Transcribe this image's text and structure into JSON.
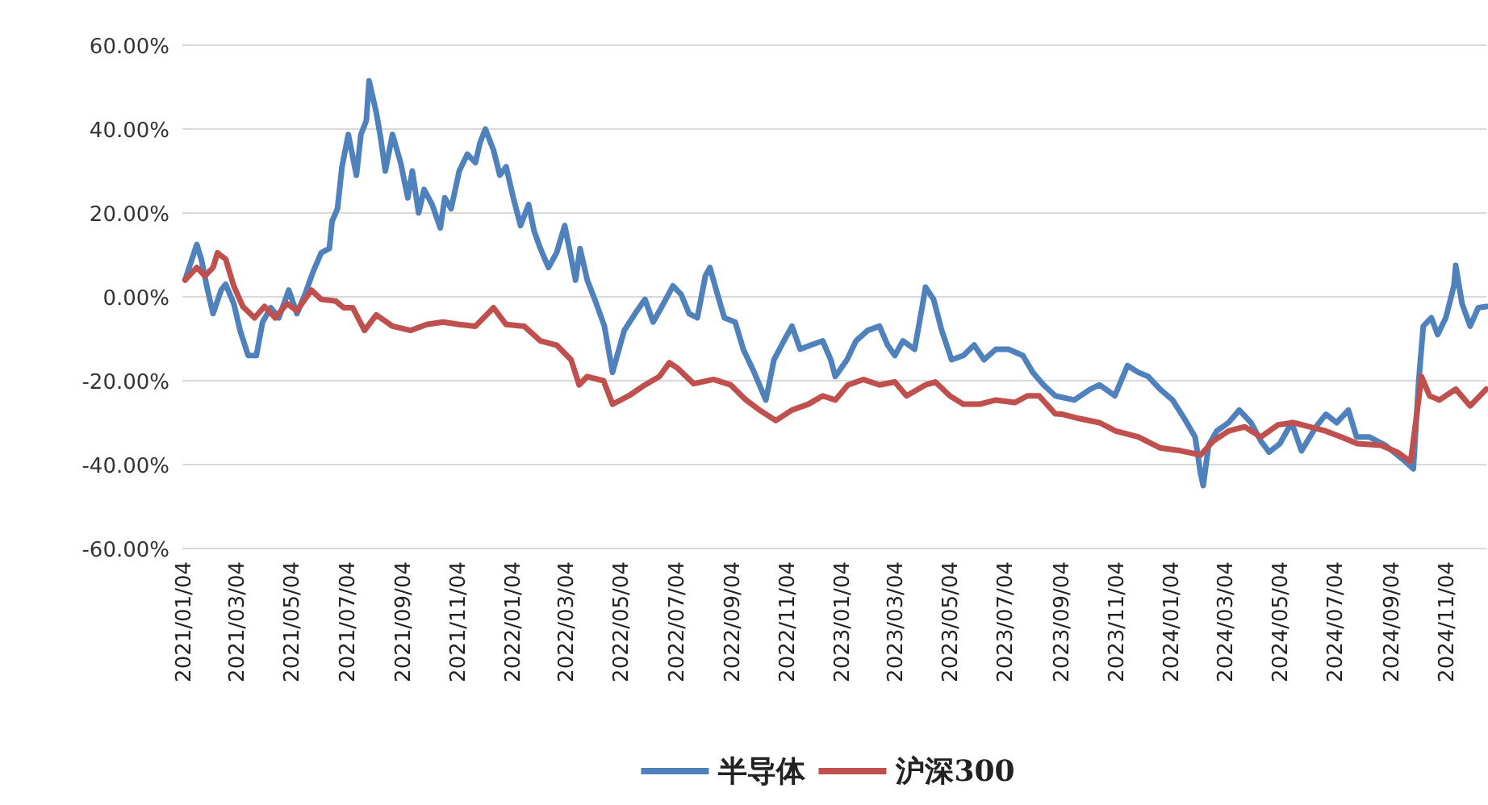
{
  "chart_data": {
    "type": "line",
    "xlim": [
      "2021-01-01",
      "2024-12-17"
    ],
    "xticks": [
      {
        "value": "2021-01-04",
        "label": "2021/01/04"
      },
      {
        "value": "2021-03-04",
        "label": "2021/03/04"
      },
      {
        "value": "2021-05-04",
        "label": "2021/05/04"
      },
      {
        "value": "2021-07-04",
        "label": "2021/07/04"
      },
      {
        "value": "2021-09-04",
        "label": "2021/09/04"
      },
      {
        "value": "2021-11-04",
        "label": "2021/11/04"
      },
      {
        "value": "2022-01-04",
        "label": "2022/01/04"
      },
      {
        "value": "2022-03-04",
        "label": "2022/03/04"
      },
      {
        "value": "2022-05-04",
        "label": "2022/05/04"
      },
      {
        "value": "2022-07-04",
        "label": "2022/07/04"
      },
      {
        "value": "2022-09-04",
        "label": "2022/09/04"
      },
      {
        "value": "2022-11-04",
        "label": "2022/11/04"
      },
      {
        "value": "2023-01-04",
        "label": "2023/01/04"
      },
      {
        "value": "2023-03-04",
        "label": "2023/03/04"
      },
      {
        "value": "2023-05-04",
        "label": "2023/05/04"
      },
      {
        "value": "2023-07-04",
        "label": "2023/07/04"
      },
      {
        "value": "2023-09-04",
        "label": "2023/09/04"
      },
      {
        "value": "2023-11-04",
        "label": "2023/11/04"
      },
      {
        "value": "2024-01-04",
        "label": "2024/01/04"
      },
      {
        "value": "2024-03-04",
        "label": "2024/03/04"
      },
      {
        "value": "2024-05-04",
        "label": "2024/05/04"
      },
      {
        "value": "2024-07-04",
        "label": "2024/07/04"
      },
      {
        "value": "2024-09-04",
        "label": "2024/09/04"
      },
      {
        "value": "2024-11-04",
        "label": "2024/11/04"
      }
    ],
    "ylim": [
      -60,
      60
    ],
    "yticks": [
      {
        "value": 60,
        "label": "60.00%"
      },
      {
        "value": 40,
        "label": "40.00%"
      },
      {
        "value": 20,
        "label": "20.00%"
      },
      {
        "value": 0,
        "label": "0.00%"
      },
      {
        "value": -20,
        "label": "-20.00%"
      },
      {
        "value": -40,
        "label": "-40.00%"
      },
      {
        "value": -60,
        "label": "-60.00%"
      }
    ],
    "grid": "y",
    "legend": "bottom",
    "series": [
      {
        "name": "半导体",
        "color": "#4f81bd",
        "x": [
          "2021-01-04",
          "2021-01-17",
          "2021-01-22",
          "2021-01-29",
          "2021-02-04",
          "2021-02-13",
          "2021-02-18",
          "2021-02-27",
          "2021-03-06",
          "2021-03-15",
          "2021-03-24",
          "2021-03-31",
          "2021-04-09",
          "2021-04-18",
          "2021-04-29",
          "2021-05-08",
          "2021-05-17",
          "2021-05-26",
          "2021-06-04",
          "2021-06-13",
          "2021-06-16",
          "2021-06-22",
          "2021-06-27",
          "2021-07-04",
          "2021-07-13",
          "2021-07-18",
          "2021-07-24",
          "2021-07-27",
          "2021-08-04",
          "2021-08-09",
          "2021-08-14",
          "2021-08-22",
          "2021-08-31",
          "2021-09-08",
          "2021-09-13",
          "2021-09-20",
          "2021-09-26",
          "2021-10-05",
          "2021-10-14",
          "2021-10-19",
          "2021-10-26",
          "2021-11-04",
          "2021-11-13",
          "2021-11-22",
          "2021-11-27",
          "2021-12-03",
          "2021-12-12",
          "2021-12-19",
          "2021-12-26",
          "2022-01-03",
          "2022-01-11",
          "2022-01-20",
          "2022-01-26",
          "2022-02-02",
          "2022-02-11",
          "2022-02-20",
          "2022-03-01",
          "2022-03-04",
          "2022-03-13",
          "2022-03-18",
          "2022-03-26",
          "2022-04-05",
          "2022-04-14",
          "2022-04-23",
          "2022-05-06",
          "2022-05-18",
          "2022-05-29",
          "2022-06-07",
          "2022-06-16",
          "2022-06-29",
          "2022-07-08",
          "2022-07-17",
          "2022-07-26",
          "2022-08-04",
          "2022-08-09",
          "2022-08-16",
          "2022-08-25",
          "2022-09-06",
          "2022-09-15",
          "2022-09-27",
          "2022-10-10",
          "2022-10-19",
          "2022-10-30",
          "2022-11-08",
          "2022-11-17",
          "2022-11-29",
          "2022-12-12",
          "2022-12-21",
          "2022-12-26",
          "2023-01-08",
          "2023-01-18",
          "2023-01-31",
          "2023-02-13",
          "2023-02-22",
          "2023-03-02",
          "2023-03-11",
          "2023-03-24",
          "2023-04-02",
          "2023-04-05",
          "2023-04-14",
          "2023-04-23",
          "2023-05-04",
          "2023-05-17",
          "2023-05-29",
          "2023-06-09",
          "2023-06-22",
          "2023-07-06",
          "2023-07-22",
          "2023-08-02",
          "2023-08-14",
          "2023-08-27",
          "2023-09-17",
          "2023-10-05",
          "2023-10-15",
          "2023-11-01",
          "2023-11-15",
          "2023-11-27",
          "2023-12-08",
          "2023-12-21",
          "2024-01-04",
          "2024-01-17",
          "2024-01-29",
          "2024-02-04",
          "2024-02-07",
          "2024-02-13",
          "2024-02-22",
          "2024-03-06",
          "2024-03-18",
          "2024-03-31",
          "2024-04-11",
          "2024-04-20",
          "2024-05-02",
          "2024-05-15",
          "2024-05-26",
          "2024-06-11",
          "2024-06-22",
          "2024-07-04",
          "2024-07-17",
          "2024-07-26",
          "2024-08-09",
          "2024-08-27",
          "2024-09-15",
          "2024-09-27",
          "2024-10-03",
          "2024-10-08",
          "2024-10-17",
          "2024-10-24",
          "2024-11-02",
          "2024-11-11",
          "2024-11-13",
          "2024-11-20",
          "2024-11-29",
          "2024-12-08",
          "2024-12-17"
        ],
        "values": [
          4,
          12.5,
          9,
          1.6,
          -4,
          1.6,
          3,
          -1.6,
          -8,
          -14,
          -14,
          -6,
          -2.6,
          -5,
          1.6,
          -4,
          0.6,
          6,
          10.5,
          11.5,
          18,
          21,
          31,
          38.7,
          29,
          38.7,
          42,
          51.5,
          44,
          37.7,
          30,
          38.7,
          32,
          23.6,
          30,
          20,
          25.6,
          22,
          16.4,
          23.6,
          21,
          30,
          34,
          32,
          36.7,
          40,
          35,
          29,
          31,
          23.6,
          17,
          22,
          15.7,
          11.5,
          7,
          10.5,
          17,
          13.8,
          4,
          11.5,
          4,
          -1.6,
          -7,
          -18,
          -8,
          -4,
          -0.6,
          -6,
          -2.6,
          2.6,
          0.6,
          -4,
          -5,
          5,
          7,
          1.6,
          -5,
          -6,
          -12.5,
          -18,
          -24.6,
          -15,
          -10.5,
          -7,
          -12.5,
          -11.5,
          -10.5,
          -15,
          -19,
          -15,
          -10.5,
          -8,
          -7,
          -11.5,
          -14,
          -10.5,
          -12.5,
          -1.6,
          2.3,
          -0.6,
          -8,
          -15,
          -14,
          -11.5,
          -15,
          -12.5,
          -12.5,
          -14,
          -18,
          -21,
          -23.6,
          -24.6,
          -22,
          -21,
          -23.6,
          -16.4,
          -18,
          -19,
          -22,
          -24.6,
          -29,
          -33.4,
          -42,
          -45,
          -35.4,
          -32,
          -30,
          -27,
          -30,
          -34.4,
          -37,
          -35,
          -30,
          -36.7,
          -31,
          -28,
          -30,
          -27,
          -33.4,
          -33.4,
          -35.4,
          -38.7,
          -41,
          -20,
          -7,
          -5,
          -9,
          -5,
          2.6,
          7.5,
          -1.6,
          -7,
          -2.6,
          -2.3
        ]
      },
      {
        "name": "沪深300",
        "color": "#c0504d",
        "x": [
          "2021-01-04",
          "2021-01-17",
          "2021-01-26",
          "2021-02-04",
          "2021-02-09",
          "2021-02-18",
          "2021-02-27",
          "2021-03-09",
          "2021-03-22",
          "2021-04-02",
          "2021-04-14",
          "2021-04-27",
          "2021-05-08",
          "2021-05-24",
          "2021-06-04",
          "2021-06-20",
          "2021-06-29",
          "2021-07-09",
          "2021-07-22",
          "2021-08-04",
          "2021-08-22",
          "2021-09-11",
          "2021-09-29",
          "2021-10-17",
          "2021-11-04",
          "2021-11-22",
          "2021-12-12",
          "2021-12-26",
          "2022-01-15",
          "2022-02-02",
          "2022-02-20",
          "2022-03-08",
          "2022-03-17",
          "2022-03-26",
          "2022-04-13",
          "2022-04-23",
          "2022-05-11",
          "2022-05-29",
          "2022-06-14",
          "2022-06-25",
          "2022-07-04",
          "2022-07-22",
          "2022-08-13",
          "2022-09-01",
          "2022-09-18",
          "2022-10-03",
          "2022-10-21",
          "2022-11-08",
          "2022-11-26",
          "2022-12-12",
          "2022-12-26",
          "2023-01-09",
          "2023-01-26",
          "2023-02-13",
          "2023-03-02",
          "2023-03-15",
          "2023-04-05",
          "2023-04-16",
          "2023-05-02",
          "2023-05-17",
          "2023-06-04",
          "2023-06-22",
          "2023-07-13",
          "2023-07-27",
          "2023-08-09",
          "2023-08-27",
          "2023-09-04",
          "2023-09-22",
          "2023-10-15",
          "2023-11-02",
          "2023-11-27",
          "2023-12-21",
          "2024-01-13",
          "2024-02-04",
          "2024-02-18",
          "2024-03-06",
          "2024-03-24",
          "2024-04-11",
          "2024-04-30",
          "2024-05-17",
          "2024-06-04",
          "2024-06-22",
          "2024-07-09",
          "2024-07-27",
          "2024-08-22",
          "2024-09-09",
          "2024-09-24",
          "2024-09-29",
          "2024-10-06",
          "2024-10-15",
          "2024-10-26",
          "2024-11-13",
          "2024-11-29",
          "2024-12-17"
        ],
        "values": [
          4,
          7,
          5,
          7,
          10.5,
          9,
          2.6,
          -2.3,
          -5,
          -2.3,
          -5,
          -1.6,
          -3.3,
          1.6,
          -0.6,
          -1,
          -2.6,
          -2.6,
          -8,
          -4.3,
          -7,
          -8,
          -6.6,
          -6,
          -6.6,
          -7,
          -2.6,
          -6.6,
          -7,
          -10.5,
          -11.5,
          -15,
          -21,
          -19,
          -20,
          -25.6,
          -23.6,
          -21,
          -19,
          -15.7,
          -17,
          -20.7,
          -19.7,
          -21,
          -24.6,
          -27,
          -29.5,
          -27,
          -25.6,
          -23.6,
          -24.6,
          -21,
          -19.7,
          -21,
          -20.3,
          -23.6,
          -21,
          -20.3,
          -23.6,
          -25.6,
          -25.6,
          -24.6,
          -25.2,
          -23.6,
          -23.6,
          -27.9,
          -28,
          -29,
          -30,
          -32,
          -33.4,
          -36,
          -36.7,
          -37.7,
          -34.4,
          -32,
          -31,
          -33.4,
          -30.5,
          -30,
          -31,
          -32,
          -33.4,
          -35,
          -35.4,
          -37,
          -39.3,
          -31,
          -19,
          -23.6,
          -24.6,
          -22,
          -26,
          -22
        ]
      }
    ]
  }
}
